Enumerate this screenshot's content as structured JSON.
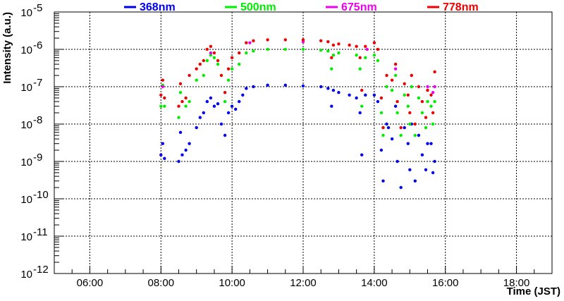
{
  "chart_data": {
    "type": "scatter",
    "title": "",
    "xlabel": "Time (JST)",
    "ylabel": "Intensity (a.u.)",
    "x_unit": "hour of day",
    "xlim": [
      5.0,
      19.0
    ],
    "ylim": [
      1e-12,
      1e-05
    ],
    "y_scale": "log",
    "grid": true,
    "legend_position": "top",
    "x_ticks": [
      {
        "value": 6,
        "label": "06:00"
      },
      {
        "value": 8,
        "label": "08:00"
      },
      {
        "value": 10,
        "label": "10:00"
      },
      {
        "value": 12,
        "label": "12:00"
      },
      {
        "value": 14,
        "label": "14:00"
      },
      {
        "value": 16,
        "label": "16:00"
      },
      {
        "value": 18,
        "label": "18:00"
      }
    ],
    "y_ticks": [
      {
        "exp": -12,
        "base": "10",
        "sup": "-12"
      },
      {
        "exp": -11,
        "base": "10",
        "sup": "-11"
      },
      {
        "exp": -10,
        "base": "10",
        "sup": "-10"
      },
      {
        "exp": -9,
        "base": "10",
        "sup": "-9"
      },
      {
        "exp": -8,
        "base": "10",
        "sup": "-8"
      },
      {
        "exp": -7,
        "base": "10",
        "sup": "-7"
      },
      {
        "exp": -6,
        "base": "10",
        "sup": "-6"
      },
      {
        "exp": -5,
        "base": "10",
        "sup": "-5"
      }
    ],
    "series": [
      {
        "name": "368nm",
        "color": "#0000ee",
        "points": [
          [
            8.0,
            1.5e-09
          ],
          [
            8.05,
            3e-09
          ],
          [
            8.1,
            1.2e-09
          ],
          [
            8.5,
            1e-09
          ],
          [
            8.55,
            6e-09
          ],
          [
            8.6,
            1.5e-09
          ],
          [
            8.7,
            2e-09
          ],
          [
            8.8,
            3e-09
          ],
          [
            9.0,
            8e-09
          ],
          [
            9.1,
            1.5e-08
          ],
          [
            9.2,
            2e-08
          ],
          [
            9.3,
            4e-08
          ],
          [
            9.4,
            5e-08
          ],
          [
            9.5,
            3e-08
          ],
          [
            9.6,
            3.5e-08
          ],
          [
            9.7,
            1e-08
          ],
          [
            9.8,
            5e-09
          ],
          [
            9.9,
            2e-08
          ],
          [
            10.0,
            3e-08
          ],
          [
            10.1,
            2.5e-08
          ],
          [
            10.2,
            4e-08
          ],
          [
            10.3,
            6e-08
          ],
          [
            10.4,
            9e-08
          ],
          [
            10.6,
            1e-07
          ],
          [
            11.0,
            1.1e-07
          ],
          [
            11.5,
            1.1e-07
          ],
          [
            12.0,
            1.05e-07
          ],
          [
            12.5,
            1e-07
          ],
          [
            12.7,
            9e-08
          ],
          [
            12.8,
            3e-08
          ],
          [
            12.85,
            8e-08
          ],
          [
            13.0,
            7e-08
          ],
          [
            13.3,
            6e-08
          ],
          [
            13.5,
            5e-08
          ],
          [
            13.6,
            2e-08
          ],
          [
            13.65,
            1.5e-09
          ],
          [
            13.75,
            6e-08
          ],
          [
            14.0,
            6e-08
          ],
          [
            14.1,
            4e-08
          ],
          [
            14.2,
            2e-09
          ],
          [
            14.25,
            3e-10
          ],
          [
            14.35,
            1e-08
          ],
          [
            14.4,
            8e-09
          ],
          [
            14.5,
            4e-09
          ],
          [
            14.6,
            3e-08
          ],
          [
            14.65,
            1e-09
          ],
          [
            14.75,
            2e-10
          ],
          [
            14.85,
            8e-09
          ],
          [
            14.95,
            3e-09
          ],
          [
            15.0,
            6e-10
          ],
          [
            15.05,
            1e-08
          ],
          [
            15.15,
            3e-10
          ],
          [
            15.25,
            5e-09
          ],
          [
            15.35,
            1.5e-09
          ],
          [
            15.45,
            6e-10
          ],
          [
            15.5,
            3e-09
          ],
          [
            15.6,
            3e-09
          ],
          [
            15.65,
            5e-10
          ],
          [
            15.7,
            1e-09
          ]
        ]
      },
      {
        "name": "500nm",
        "color": "#00ee00",
        "points": [
          [
            8.0,
            3e-08
          ],
          [
            8.05,
            1.1e-07
          ],
          [
            8.1,
            3e-08
          ],
          [
            8.5,
            1.5e-08
          ],
          [
            8.55,
            7e-08
          ],
          [
            8.7,
            3e-08
          ],
          [
            8.8,
            4e-08
          ],
          [
            9.0,
            1.5e-07
          ],
          [
            9.2,
            2e-07
          ],
          [
            9.3,
            5e-07
          ],
          [
            9.4,
            7e-07
          ],
          [
            9.5,
            6e-07
          ],
          [
            9.6,
            4e-07
          ],
          [
            9.7,
            2e-07
          ],
          [
            9.8,
            4e-08
          ],
          [
            9.9,
            1.5e-07
          ],
          [
            10.0,
            3e-07
          ],
          [
            10.2,
            4e-07
          ],
          [
            10.4,
            8e-07
          ],
          [
            10.6,
            9e-07
          ],
          [
            11.0,
            1e-06
          ],
          [
            11.5,
            1e-06
          ],
          [
            12.0,
            1e-06
          ],
          [
            12.5,
            9.5e-07
          ],
          [
            12.7,
            9e-07
          ],
          [
            12.8,
            3e-07
          ],
          [
            12.85,
            7e-07
          ],
          [
            13.0,
            8e-07
          ],
          [
            13.5,
            7e-07
          ],
          [
            13.6,
            3e-07
          ],
          [
            13.65,
            3e-08
          ],
          [
            13.75,
            6e-07
          ],
          [
            14.0,
            7e-07
          ],
          [
            14.1,
            5e-07
          ],
          [
            14.2,
            2e-08
          ],
          [
            14.25,
            5e-09
          ],
          [
            14.35,
            1e-07
          ],
          [
            14.5,
            8e-08
          ],
          [
            14.6,
            2e-07
          ],
          [
            14.65,
            2e-08
          ],
          [
            14.75,
            5e-09
          ],
          [
            14.85,
            6e-08
          ],
          [
            14.95,
            3e-08
          ],
          [
            15.0,
            1e-08
          ],
          [
            15.05,
            1e-07
          ],
          [
            15.15,
            5e-09
          ],
          [
            15.25,
            5e-08
          ],
          [
            15.35,
            2e-08
          ],
          [
            15.45,
            8e-09
          ],
          [
            15.5,
            4e-08
          ],
          [
            15.6,
            3e-08
          ],
          [
            15.65,
            1e-08
          ],
          [
            15.7,
            4e-08
          ]
        ]
      },
      {
        "name": "675nm",
        "color": "#ee00ee",
        "points": [
          [
            8.05,
            1e-07
          ],
          [
            9.4,
            8e-07
          ],
          [
            10.5,
            1.5e-06
          ],
          [
            12.0,
            1.6e-06
          ],
          [
            13.8,
            1e-06
          ],
          [
            14.6,
            3e-07
          ],
          [
            15.05,
            2e-07
          ],
          [
            15.5,
            1e-07
          ],
          [
            15.65,
            7e-08
          ],
          [
            15.7,
            1e-07
          ]
        ]
      },
      {
        "name": "778nm",
        "color": "#ee0000",
        "points": [
          [
            8.0,
            6e-08
          ],
          [
            8.05,
            1.5e-07
          ],
          [
            8.1,
            5e-08
          ],
          [
            8.5,
            3e-08
          ],
          [
            8.55,
            1.2e-07
          ],
          [
            8.6,
            4e-08
          ],
          [
            8.7,
            5e-08
          ],
          [
            8.8,
            2e-07
          ],
          [
            9.0,
            3e-07
          ],
          [
            9.1,
            4e-07
          ],
          [
            9.2,
            5e-07
          ],
          [
            9.3,
            1e-06
          ],
          [
            9.4,
            1.2e-06
          ],
          [
            9.5,
            8e-07
          ],
          [
            9.6,
            5e-07
          ],
          [
            9.7,
            2e-07
          ],
          [
            9.8,
            7e-08
          ],
          [
            9.9,
            3e-07
          ],
          [
            10.0,
            6e-07
          ],
          [
            10.2,
            8e-07
          ],
          [
            10.4,
            1.5e-06
          ],
          [
            10.6,
            1.7e-06
          ],
          [
            11.0,
            1.8e-06
          ],
          [
            11.5,
            1.8e-06
          ],
          [
            12.0,
            1.8e-06
          ],
          [
            12.5,
            1.7e-06
          ],
          [
            12.7,
            1.6e-06
          ],
          [
            12.8,
            6e-07
          ],
          [
            12.85,
            1.3e-06
          ],
          [
            13.0,
            1.4e-06
          ],
          [
            13.3,
            1.3e-06
          ],
          [
            13.5,
            1.2e-06
          ],
          [
            13.6,
            6e-07
          ],
          [
            13.65,
            8e-08
          ],
          [
            13.75,
            1.2e-06
          ],
          [
            14.0,
            1.5e-06
          ],
          [
            14.1,
            1e-06
          ],
          [
            14.2,
            5e-08
          ],
          [
            14.25,
            8e-09
          ],
          [
            14.35,
            2e-07
          ],
          [
            14.5,
            1.5e-07
          ],
          [
            14.6,
            4e-07
          ],
          [
            14.65,
            4e-08
          ],
          [
            14.75,
            8e-09
          ],
          [
            14.85,
            1.2e-07
          ],
          [
            14.95,
            6e-08
          ],
          [
            15.0,
            2e-08
          ],
          [
            15.05,
            2e-07
          ],
          [
            15.15,
            1e-08
          ],
          [
            15.25,
            1e-07
          ],
          [
            15.35,
            4e-08
          ],
          [
            15.45,
            1.5e-08
          ],
          [
            15.5,
            8e-08
          ],
          [
            15.6,
            6e-08
          ],
          [
            15.65,
            2e-08
          ],
          [
            15.7,
            2.5e-07
          ]
        ]
      }
    ]
  }
}
